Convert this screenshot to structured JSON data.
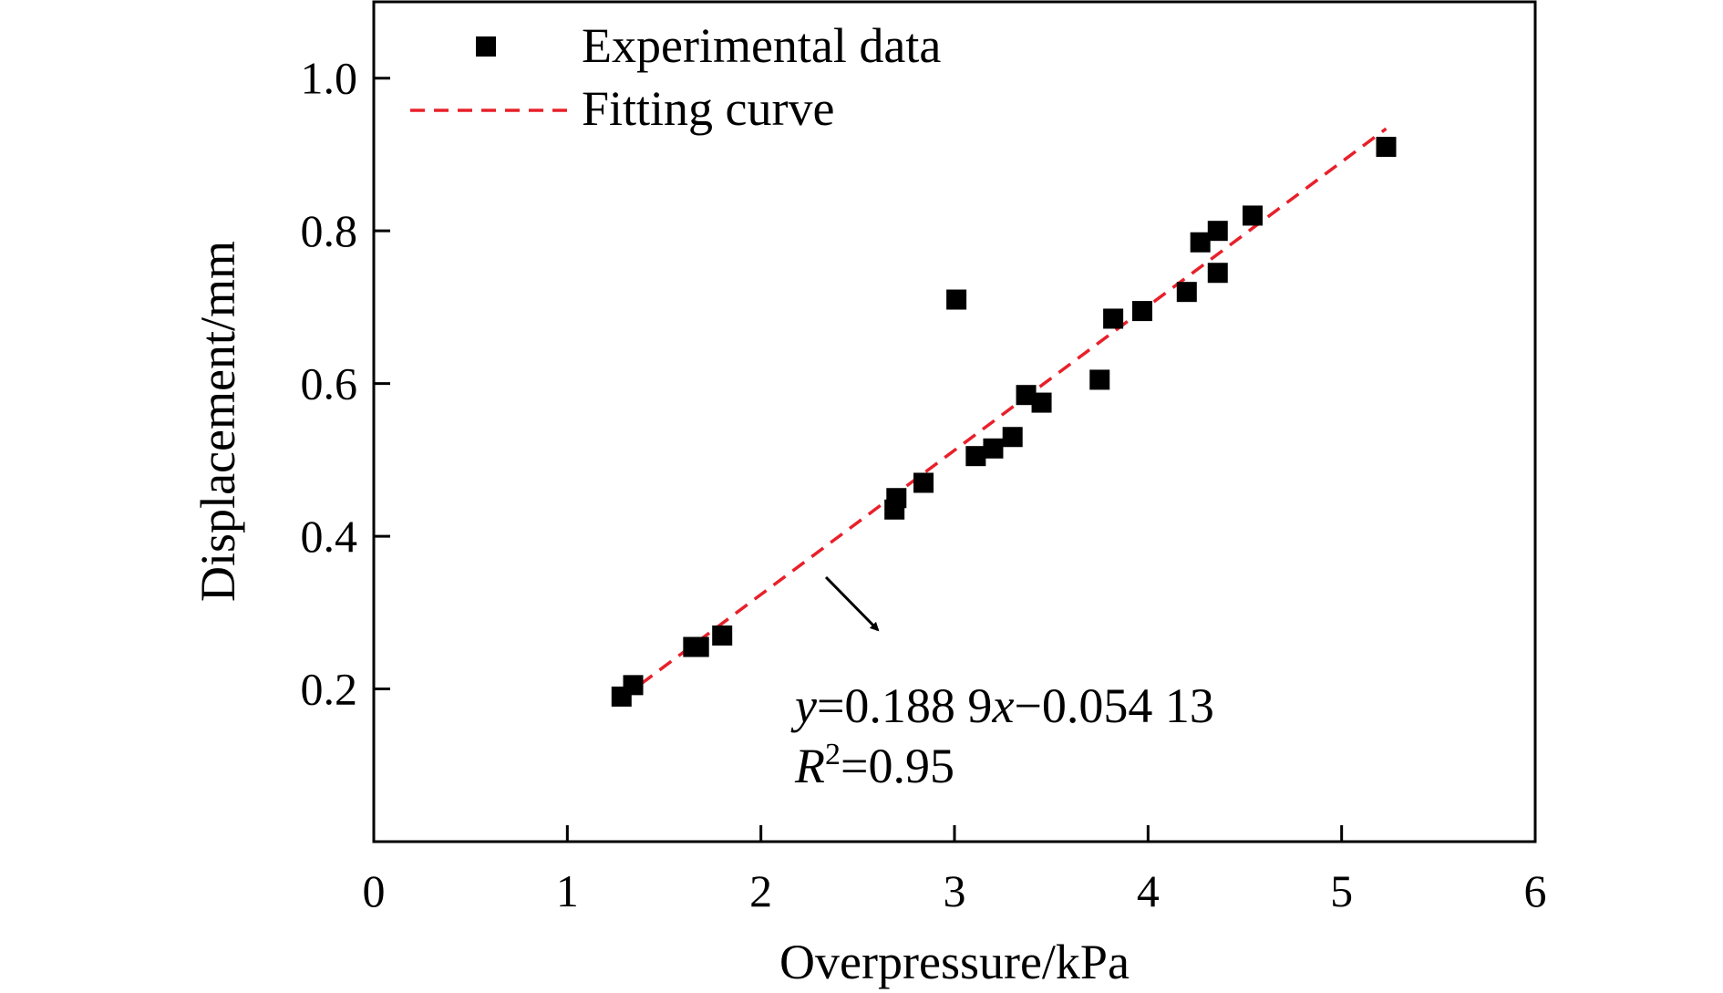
{
  "chart_data": {
    "type": "scatter",
    "title": "",
    "xlabel": "Overpressure/kPa",
    "ylabel": "Displacement/mm",
    "xlim": [
      0,
      6
    ],
    "ylim": [
      0,
      1.1
    ],
    "x_ticks": [
      0,
      1,
      2,
      3,
      4,
      5,
      6
    ],
    "x_tick_labels": [
      "0",
      "1",
      "2",
      "3",
      "4",
      "5",
      "6"
    ],
    "y_ticks": [
      0.2,
      0.4,
      0.6,
      0.8,
      1.0
    ],
    "y_tick_labels": [
      "0.2",
      "0.4",
      "0.6",
      "0.8",
      "1.0"
    ],
    "grid": false,
    "legend_position": "top-left",
    "series": [
      {
        "name": "Experimental data",
        "kind": "scatter",
        "marker": "square",
        "color": "#000000",
        "points": [
          [
            1.28,
            0.19
          ],
          [
            1.34,
            0.205
          ],
          [
            1.65,
            0.255
          ],
          [
            1.68,
            0.255
          ],
          [
            1.8,
            0.27
          ],
          [
            2.69,
            0.435
          ],
          [
            2.7,
            0.45
          ],
          [
            2.84,
            0.47
          ],
          [
            3.01,
            0.71
          ],
          [
            3.11,
            0.505
          ],
          [
            3.2,
            0.515
          ],
          [
            3.3,
            0.53
          ],
          [
            3.37,
            0.585
          ],
          [
            3.45,
            0.575
          ],
          [
            3.75,
            0.605
          ],
          [
            3.82,
            0.685
          ],
          [
            3.97,
            0.695
          ],
          [
            4.2,
            0.72
          ],
          [
            4.27,
            0.785
          ],
          [
            4.36,
            0.8
          ],
          [
            4.36,
            0.745
          ],
          [
            4.54,
            0.82
          ],
          [
            5.23,
            0.91
          ]
        ]
      },
      {
        "name": "Fitting curve",
        "kind": "line",
        "style": "dashed",
        "color": "#e8202a",
        "slope": 0.1889,
        "intercept": -0.05413,
        "x_range": [
          1.28,
          5.23
        ]
      }
    ],
    "annotations": {
      "equation": {
        "y_var": "y",
        "eq_part1": "=0.188 9",
        "x_var": "x",
        "eq_part2": "−0.054 13"
      },
      "r_squared": {
        "r": "R",
        "sup": "2",
        "value": "=0.95"
      }
    }
  }
}
